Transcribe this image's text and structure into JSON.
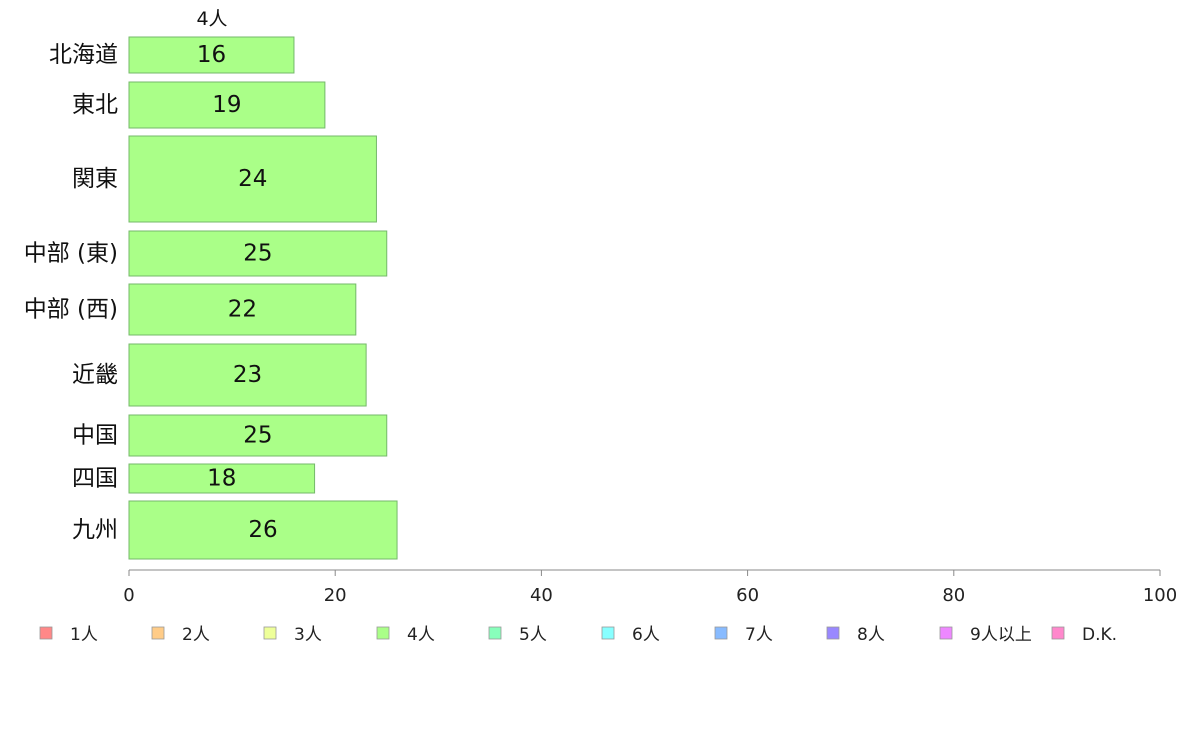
{
  "chart_data": {
    "type": "bar",
    "orientation": "horizontal",
    "series_title": "4人",
    "categories": [
      "北海道",
      "東北",
      "関東",
      "中部 (東)",
      "中部 (西)",
      "近畿",
      "中国",
      "四国",
      "九州"
    ],
    "values": [
      16,
      19,
      24,
      25,
      22,
      23,
      25,
      18,
      26
    ],
    "xlim": [
      0,
      100
    ],
    "xticks": [
      "0",
      "20",
      "40",
      "60",
      "80",
      "100"
    ],
    "bar_color": "#aaff88",
    "grid": false,
    "legend_position": "bottom",
    "legend": [
      {
        "label": "1人",
        "color": "#ff8888"
      },
      {
        "label": "2人",
        "color": "#ffcc88"
      },
      {
        "label": "3人",
        "color": "#eeff99"
      },
      {
        "label": "4人",
        "color": "#aaff88"
      },
      {
        "label": "5人",
        "color": "#88ffbb"
      },
      {
        "label": "6人",
        "color": "#88ffff"
      },
      {
        "label": "7人",
        "color": "#88bbff"
      },
      {
        "label": "8人",
        "color": "#9988ff"
      },
      {
        "label": "9人以上",
        "color": "#ee88ff"
      },
      {
        "label": "D.K.",
        "color": "#ff88cc"
      }
    ]
  }
}
